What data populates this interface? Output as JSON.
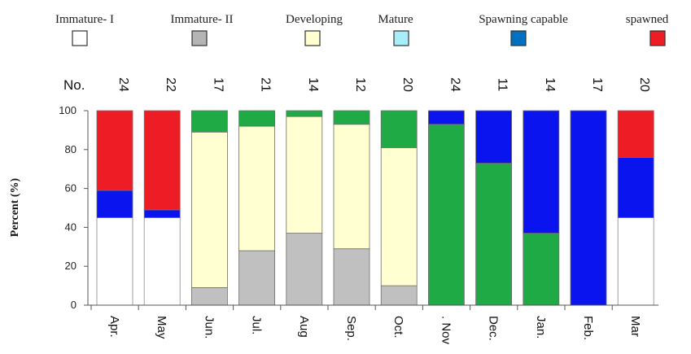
{
  "chart_data": {
    "type": "bar",
    "stacked": true,
    "ylabel": "Percent (%)",
    "ylim": [
      0,
      100
    ],
    "yticks": [
      0,
      20,
      40,
      60,
      80,
      100
    ],
    "count_label": "No.",
    "categories": [
      "Apr.",
      "May",
      "Jun.",
      "Jul.",
      "Aug",
      "Sep.",
      "Oct.",
      ". Nov",
      "Dec.",
      "Jan.",
      "Feb.",
      "Mar"
    ],
    "counts": [
      "24",
      "22",
      "17",
      "21",
      "14",
      "12",
      "20",
      "24",
      "11",
      "14",
      "17",
      "20"
    ],
    "series": [
      {
        "name": "Immature- I",
        "color": "#ffffff",
        "values": [
          45,
          45,
          0,
          0,
          0,
          0,
          0,
          0,
          0,
          0,
          0,
          45
        ]
      },
      {
        "name": "Immature- II",
        "color": "#c0c0c0",
        "values": [
          0,
          0,
          9,
          28,
          37,
          29,
          10,
          0,
          0,
          0,
          0,
          0
        ]
      },
      {
        "name": "Developing",
        "color": "#ffffd2",
        "values": [
          0,
          0,
          80,
          64,
          60,
          64,
          71,
          0,
          0,
          0,
          0,
          0
        ]
      },
      {
        "name": "Mature",
        "color": "#1faa45",
        "values": [
          0,
          0,
          11,
          8,
          3,
          7,
          19,
          93,
          73,
          37,
          0,
          0
        ]
      },
      {
        "name": "Spawning capable",
        "color": "#0a14ee",
        "values": [
          14,
          4,
          0,
          0,
          0,
          0,
          0,
          7,
          27,
          63,
          100,
          31
        ]
      },
      {
        "name": "spawned",
        "color": "#ee1c25",
        "values": [
          41,
          51,
          0,
          0,
          0,
          0,
          0,
          0,
          0,
          0,
          0,
          24
        ]
      }
    ],
    "legend": {
      "placement": "top",
      "items": [
        {
          "label": "Immature- I",
          "swatch": "#ffffff"
        },
        {
          "label": "Immature- II",
          "swatch": "#b4b4b4"
        },
        {
          "label": "Developing",
          "swatch": "#ffffd2"
        },
        {
          "label": "Mature",
          "swatch": "#a8eef8"
        },
        {
          "label": "Spawning capable",
          "swatch": "#0070c0"
        },
        {
          "label": "spawned",
          "swatch": "#ee1c25"
        }
      ]
    }
  }
}
